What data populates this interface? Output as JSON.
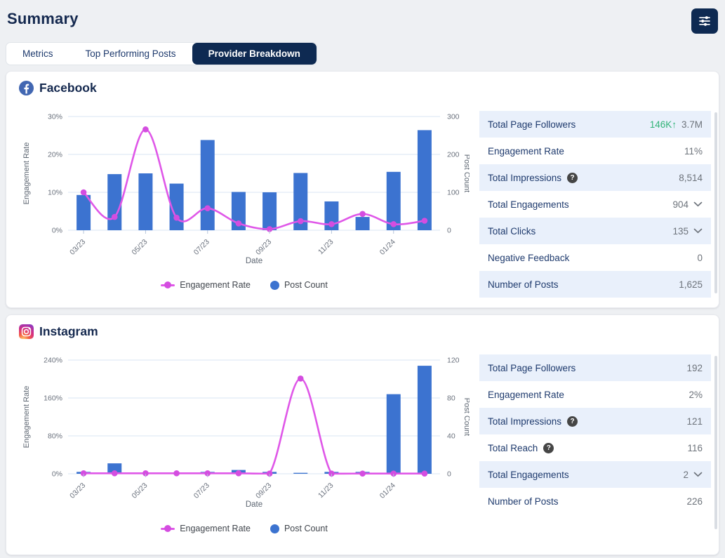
{
  "page": {
    "title": "Summary"
  },
  "header": {
    "filter_icon": "sliders-icon"
  },
  "tabs": [
    {
      "label": "Metrics",
      "active": false
    },
    {
      "label": "Top Performing Posts",
      "active": false
    },
    {
      "label": "Provider Breakdown",
      "active": true
    }
  ],
  "theme": {
    "navy": "#0e2a52",
    "heading": "#15294f",
    "label_navy": "#1e3a6d",
    "value_gray": "#6d737b",
    "green": "#31b377",
    "row_alt_bg": "#e9f0fb",
    "page_bg": "#eef0f3",
    "facebook_blue": "#4267b2"
  },
  "sections": [
    {
      "id": "facebook",
      "title": "Facebook",
      "icon": "facebook-icon",
      "stats": [
        {
          "label": "Total Page Followers",
          "delta": "146K↑",
          "value": "3.7M"
        },
        {
          "label": "Engagement Rate",
          "value": "11%"
        },
        {
          "label": "Total Impressions",
          "help": true,
          "value": "8,514"
        },
        {
          "label": "Total Engagements",
          "value": "904",
          "expandable": true
        },
        {
          "label": "Total Clicks",
          "value": "135",
          "expandable": true
        },
        {
          "label": "Negative Feedback",
          "value": "0"
        },
        {
          "label": "Number of Posts",
          "value": "1,625"
        }
      ]
    },
    {
      "id": "instagram",
      "title": "Instagram",
      "icon": "instagram-icon",
      "stats": [
        {
          "label": "Total Page Followers",
          "value": "192"
        },
        {
          "label": "Engagement Rate",
          "value": "2%"
        },
        {
          "label": "Total Impressions",
          "help": true,
          "value": "121"
        },
        {
          "label": "Total Reach",
          "help": true,
          "value": "116"
        },
        {
          "label": "Total Engagements",
          "value": "2",
          "expandable": true
        },
        {
          "label": "Number of Posts",
          "value": "226"
        }
      ]
    }
  ],
  "chart_data": [
    {
      "type": "bar+line",
      "section": "Facebook",
      "x_tick_labels": [
        "03/23",
        "05/23",
        "07/23",
        "09/23",
        "11/23",
        "01/24"
      ],
      "xlabel": "Date",
      "bar_color": "#3c73d0",
      "line_color": "#df57e8",
      "dot_color": "#d44de0",
      "left_axis": {
        "label": "Engagement Rate",
        "ticks": [
          "0%",
          "10%",
          "20%",
          "30%"
        ],
        "max": 30
      },
      "right_axis": {
        "label": "Post Count",
        "ticks": [
          "0",
          "100",
          "200",
          "300"
        ],
        "max": 300
      },
      "series": [
        {
          "name": "Engagement Rate",
          "type": "line",
          "axis": "left",
          "values": [
            10,
            3.5,
            26.6,
            3.3,
            5.8,
            1.8,
            0.3,
            2.4,
            1.6,
            4.3,
            1.6,
            2.5
          ]
        },
        {
          "name": "Post Count",
          "type": "bar",
          "axis": "right",
          "values": [
            93,
            148,
            150,
            123,
            238,
            101,
            100,
            151,
            76,
            35,
            154,
            264
          ]
        }
      ],
      "legend": [
        "Engagement Rate",
        "Post Count"
      ]
    },
    {
      "type": "bar+line",
      "section": "Instagram",
      "x_tick_labels": [
        "03/23",
        "05/23",
        "07/23",
        "09/23",
        "11/23",
        "01/24"
      ],
      "xlabel": "Date",
      "bar_color": "#3c73d0",
      "line_color": "#df57e8",
      "dot_color": "#d44de0",
      "left_axis": {
        "label": "Engagement Rate",
        "ticks": [
          "0%",
          "80%",
          "160%",
          "240%"
        ],
        "max": 240
      },
      "right_axis": {
        "label": "Post Count",
        "ticks": [
          "0",
          "40",
          "80",
          "120"
        ],
        "max": 120
      },
      "series": [
        {
          "name": "Engagement Rate",
          "type": "line",
          "axis": "left",
          "values": [
            1,
            1,
            1,
            1,
            1,
            1,
            0.5,
            201,
            0.5,
            0.5,
            0.5,
            0.5
          ]
        },
        {
          "name": "Post Count",
          "type": "bar",
          "axis": "right",
          "values": [
            2,
            11,
            0,
            0,
            2,
            4,
            2,
            1,
            2,
            2,
            84,
            114
          ]
        }
      ],
      "legend": [
        "Engagement Rate",
        "Post Count"
      ]
    }
  ]
}
